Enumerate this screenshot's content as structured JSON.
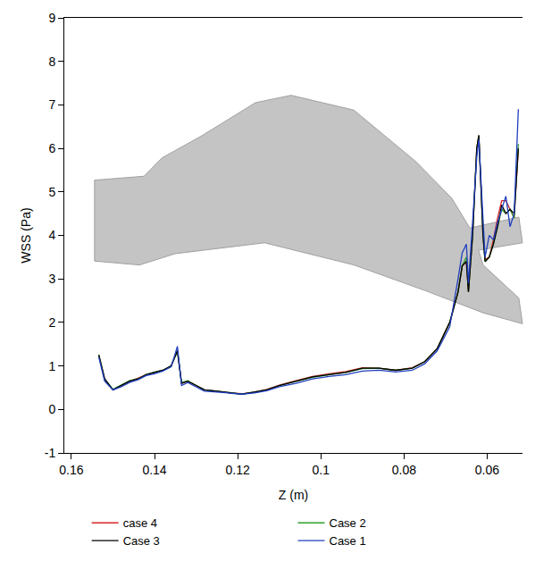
{
  "chart_data": {
    "type": "line",
    "x_label": "Z (m)",
    "y_label": "WSS (Pa)",
    "xlim": [
      0.1617,
      0.0515
    ],
    "ylim": [
      -1,
      9
    ],
    "xticks": [
      0.16,
      0.14,
      0.12,
      0.1,
      0.08,
      0.06
    ],
    "yticks": [
      -1,
      0,
      1,
      2,
      3,
      4,
      5,
      6,
      7,
      8,
      9
    ],
    "grid": false,
    "legend": "bottom",
    "x": [
      0.1534,
      0.152,
      0.15,
      0.148,
      0.146,
      0.144,
      0.142,
      0.14,
      0.138,
      0.136,
      0.1345,
      0.1335,
      0.132,
      0.13,
      0.128,
      0.125,
      0.122,
      0.119,
      0.116,
      0.113,
      0.11,
      0.106,
      0.102,
      0.098,
      0.094,
      0.09,
      0.086,
      0.082,
      0.078,
      0.075,
      0.072,
      0.069,
      0.067,
      0.066,
      0.065,
      0.0645,
      0.0635,
      0.0625,
      0.062,
      0.061,
      0.0605,
      0.0595,
      0.0585,
      0.0575,
      0.0565,
      0.0555,
      0.0545,
      0.0535,
      0.0525
    ],
    "series": [
      {
        "name": "case 4",
        "color": "#d62728",
        "values": [
          1.25,
          0.7,
          0.45,
          0.55,
          0.65,
          0.72,
          0.8,
          0.85,
          0.9,
          1.0,
          1.35,
          0.6,
          0.65,
          0.55,
          0.45,
          0.42,
          0.38,
          0.36,
          0.4,
          0.46,
          0.56,
          0.66,
          0.76,
          0.82,
          0.87,
          0.96,
          0.95,
          0.9,
          0.96,
          1.1,
          1.4,
          2.0,
          2.7,
          3.3,
          3.4,
          2.7,
          4.0,
          6.0,
          6.3,
          4.0,
          3.45,
          3.5,
          3.9,
          4.4,
          4.8,
          4.8,
          4.6,
          4.4,
          6.0
        ]
      },
      {
        "name": "Case 2",
        "color": "#2ca02c",
        "values": [
          1.25,
          0.7,
          0.46,
          0.56,
          0.66,
          0.7,
          0.8,
          0.86,
          0.9,
          1.0,
          1.33,
          0.62,
          0.66,
          0.55,
          0.45,
          0.42,
          0.38,
          0.35,
          0.4,
          0.45,
          0.55,
          0.64,
          0.74,
          0.8,
          0.85,
          0.94,
          0.95,
          0.9,
          0.95,
          1.1,
          1.4,
          2.0,
          2.7,
          3.3,
          3.5,
          2.7,
          4.0,
          6.0,
          6.3,
          4.0,
          3.4,
          3.5,
          3.8,
          4.2,
          4.6,
          4.5,
          4.6,
          4.4,
          6.1
        ]
      },
      {
        "name": "Case 3",
        "color": "#000000",
        "values": [
          1.25,
          0.7,
          0.45,
          0.55,
          0.65,
          0.7,
          0.8,
          0.85,
          0.9,
          1.0,
          1.35,
          0.6,
          0.65,
          0.55,
          0.45,
          0.42,
          0.38,
          0.35,
          0.4,
          0.45,
          0.55,
          0.65,
          0.75,
          0.8,
          0.85,
          0.95,
          0.95,
          0.9,
          0.95,
          1.1,
          1.4,
          2.0,
          2.7,
          3.3,
          3.4,
          2.7,
          4.0,
          6.0,
          6.3,
          4.0,
          3.4,
          3.5,
          3.8,
          4.2,
          4.7,
          4.5,
          4.6,
          4.5,
          6.0
        ]
      },
      {
        "name": "Case 1",
        "color": "#1f3fbf",
        "values": [
          1.2,
          0.65,
          0.45,
          0.52,
          0.62,
          0.68,
          0.78,
          0.82,
          0.88,
          0.98,
          1.45,
          0.55,
          0.62,
          0.52,
          0.42,
          0.4,
          0.37,
          0.35,
          0.38,
          0.43,
          0.52,
          0.6,
          0.7,
          0.76,
          0.8,
          0.88,
          0.9,
          0.86,
          0.9,
          1.05,
          1.35,
          1.9,
          3.0,
          3.6,
          3.8,
          2.9,
          4.3,
          5.8,
          6.2,
          4.4,
          3.5,
          4.0,
          3.9,
          4.3,
          4.6,
          4.9,
          4.2,
          4.5,
          6.9
        ]
      }
    ]
  }
}
